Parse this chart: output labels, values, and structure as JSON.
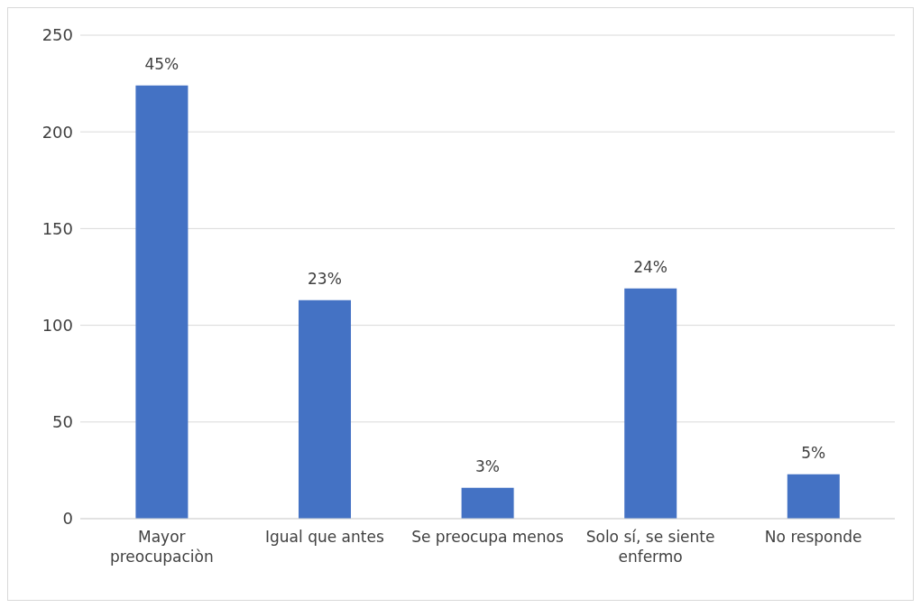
{
  "chart_data": {
    "type": "bar",
    "categories": [
      "Mayor preocupaciòn",
      "Igual que antes",
      "Se preocupa menos",
      "Solo sí, se siente enfermo",
      "No responde"
    ],
    "values": [
      224,
      113,
      16,
      119,
      23
    ],
    "color": "#4472c4",
    "annotations": [
      {
        "text": "45%",
        "x": "Mayor preocupaciòn",
        "y": 224
      },
      {
        "text": "23%",
        "x": "Igual que antes",
        "y": 113
      },
      {
        "text": "3%",
        "x": "Se preocupa menos",
        "y": 16
      },
      {
        "text": "24%",
        "x": "Solo sí, se siente enfermo",
        "y": 119
      },
      {
        "text": "5%",
        "x": "No responde",
        "y": 23
      }
    ],
    "ylim": [
      0,
      250
    ],
    "yticks": [
      0,
      50,
      100,
      150,
      200,
      250
    ],
    "grid": "y"
  }
}
